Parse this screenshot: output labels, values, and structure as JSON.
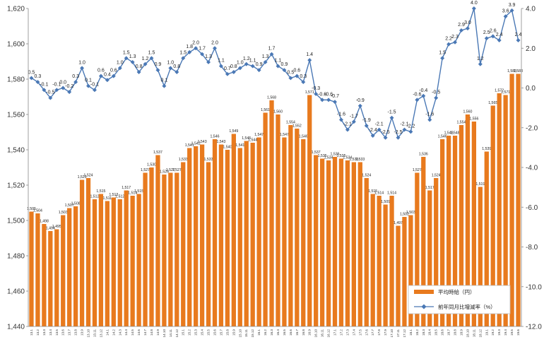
{
  "chart_data": {
    "type": "bar",
    "categories": [
      "13.1",
      "13.2",
      "13.3",
      "13.4",
      "13.5",
      "13.6",
      "13.7",
      "13.8",
      "13.9",
      "13.10",
      "13.11",
      "13.12",
      "14.1",
      "14.2",
      "14.3",
      "14.4",
      "14.5",
      "14.6",
      "14.7",
      "14.8",
      "14.9",
      "14.10",
      "14.11",
      "14.12",
      "15.1",
      "15.2",
      "15.3",
      "15.4",
      "15.5",
      "15.6",
      "15.7",
      "15.8",
      "15.9",
      "15.10",
      "15.11",
      "15.12",
      "16.1",
      "16.2",
      "16.3",
      "16.4",
      "16.5",
      "16.6",
      "16.7",
      "16.8",
      "16.9",
      "16.10",
      "16.11",
      "16.12",
      "17.1",
      "17.2",
      "17.3",
      "17.4",
      "17.5",
      "17.6",
      "17.7",
      "17.8",
      "17.9",
      "17.10",
      "17.11",
      "17.12",
      "18.1",
      "18.2",
      "18.3",
      "18.4",
      "18.5",
      "18.6",
      "18.7",
      "18.8",
      "18.9",
      "18.10",
      "18.11",
      "18.12",
      "19.1",
      "19.2",
      "19.3",
      "19.4",
      "19.5",
      "19.6"
    ],
    "series": [
      {
        "name": "平均時給（円）",
        "type": "bar",
        "axis": "left",
        "color": "#E87A1E",
        "values": [
          1505,
          1504,
          1498,
          1494,
          1495,
          1503,
          1507,
          1508,
          1523,
          1524,
          1512,
          1515,
          1511,
          1513,
          1512,
          1517,
          1514,
          1515,
          1527,
          1530,
          1537,
          1526,
          1527,
          1527,
          1533,
          1541,
          1542,
          1543,
          1533,
          1546,
          1543,
          1540,
          1549,
          1541,
          1545,
          1544,
          1547,
          1561,
          1568,
          1560,
          1547,
          1554,
          1552,
          1546,
          1571,
          1537,
          1535,
          1534,
          1536,
          1535,
          1534,
          1533,
          1533,
          1524,
          1515,
          1514,
          1509,
          1514,
          1497,
          1502,
          1503,
          1527,
          1536,
          1517,
          1524,
          1546,
          1548,
          1548,
          1554,
          1560,
          1556,
          1519,
          1539,
          1565,
          1572,
          1571,
          1583,
          1583
        ]
      },
      {
        "name": "前年同月比増減率（%）",
        "type": "line",
        "axis": "right",
        "color": "#4A78B5",
        "values": [
          0.5,
          0.3,
          -0.1,
          -0.5,
          -0.1,
          0.0,
          -0.2,
          0.3,
          1.0,
          0.1,
          -0.1,
          0.6,
          0.4,
          0.6,
          1.0,
          1.5,
          1.3,
          0.8,
          1.2,
          1.5,
          0.9,
          0.1,
          1.0,
          0.8,
          1.5,
          1.8,
          2.0,
          1.7,
          1.3,
          2.0,
          1.1,
          0.7,
          0.8,
          1.0,
          1.2,
          1.1,
          0.9,
          1.3,
          1.7,
          1.1,
          0.9,
          0.5,
          0.6,
          0.3,
          1.4,
          -0.3,
          -0.6,
          -0.6,
          -0.7,
          -1.6,
          -2.1,
          -1.7,
          -0.9,
          -1.9,
          -2.4,
          -2.1,
          -2.5,
          -1.5,
          -2.5,
          -2.1,
          -2.2,
          -0.6,
          -0.4,
          -1.6,
          -0.5,
          1.5,
          2.2,
          2.3,
          2.9,
          3.0,
          4.0,
          1.2,
          2.5,
          2.6,
          2.4,
          3.6,
          3.9,
          2.4
        ]
      }
    ],
    "bar_labels": [
      "1,505",
      "1,504",
      "1,498",
      "1,494",
      "1,495",
      "1,503",
      "1,507",
      "1,508",
      "1,523",
      "1,524",
      "1,512",
      "1,515",
      "1,511",
      "1,513",
      "1,512",
      "1,517",
      "1,514",
      "1,515",
      "1,527",
      "1,530",
      "1,537",
      "1,526",
      "1,527",
      "1,527",
      "1,533",
      "1,541",
      "1,542",
      "1,543",
      "1,533",
      "1,546",
      "1,543",
      "1,540",
      "1,549",
      "1,541",
      "1,545",
      "1,544",
      "1,547",
      "1,561",
      "1,568",
      "1,560",
      "1,547",
      "1,554",
      "1,552",
      "1,546",
      "1,571",
      "1,537",
      "1,535",
      "1,534",
      "1,536",
      "1,535",
      "1,534",
      "1,533",
      "1,533",
      "1,524",
      "1,515",
      "1,514",
      "1,509",
      "1,514",
      "1,497",
      "1,502",
      "1,503",
      "1,527",
      "1,536",
      "1,517",
      "1,524",
      "1,546",
      "1,548",
      "1,548",
      "1,554",
      "1,560",
      "1,556",
      "1,519",
      "1,539",
      "1,565",
      "1,572",
      "1,571",
      "1,583",
      "1,583"
    ],
    "line_labels": [
      "0.5",
      "0.3",
      "-0.1",
      "-0.5",
      "-0.1",
      "0.0",
      "-0.2",
      "0.3",
      "1.0",
      "0.1",
      "-0.1",
      "0.6",
      "0.4",
      "0.6",
      "1.0",
      "1.5",
      "1.3",
      "0.8",
      "1.2",
      "1.5",
      "0.9",
      "0.1",
      "1.0",
      "0.8",
      "1.5",
      "1.8",
      "2.0",
      "1.7",
      "1.3",
      "2.0",
      "1.1",
      "0.7",
      "0.8",
      "1.0",
      "1.2",
      "1.1",
      "0.9",
      "1.3",
      "1.7",
      "1.1",
      "0.9",
      "0.5",
      "0.6",
      "0.3",
      "1.4",
      "-0.3",
      "-0.6",
      "-0.6",
      "-0.7",
      "-1.6",
      "-2.1",
      "-1.7",
      "-0.9",
      "-1.9",
      "-2.4",
      "-2.1",
      "-2.5",
      "-1.5",
      "-2.5",
      "-2.1",
      "-2.2",
      "-0.6",
      "-0.4",
      "-1.6",
      "-0.5",
      "1.5",
      "2.2",
      "2.3",
      "2.9",
      "3.0",
      "4.0",
      "1.2",
      "2.5",
      "2.6",
      "2.4",
      "3.6",
      "3.9",
      "2.4"
    ],
    "y_left": {
      "min": 1440,
      "max": 1620,
      "ticks": [
        1440,
        1460,
        1480,
        1500,
        1520,
        1540,
        1560,
        1580,
        1600,
        1620
      ],
      "tick_labels": [
        "1,440",
        "1,460",
        "1,480",
        "1,500",
        "1,520",
        "1,540",
        "1,560",
        "1,580",
        "1,600",
        "1,620"
      ]
    },
    "y_right": {
      "min": -12.0,
      "max": 4.0,
      "ticks": [
        4.0,
        2.0,
        0.0,
        -2.0,
        -4.0,
        -6.0,
        -8.0,
        -10.0,
        -12.0
      ],
      "tick_labels": [
        "4.0",
        "2.0",
        "0.0",
        "-2.0",
        "-4.0",
        "-6.0",
        "-8.0",
        "-10.0",
        "-12.0"
      ]
    },
    "grid": false,
    "legend": {
      "position": "bottom-right",
      "entries": [
        "平均時給（円）",
        "前年同月比増減率（%）"
      ]
    }
  }
}
